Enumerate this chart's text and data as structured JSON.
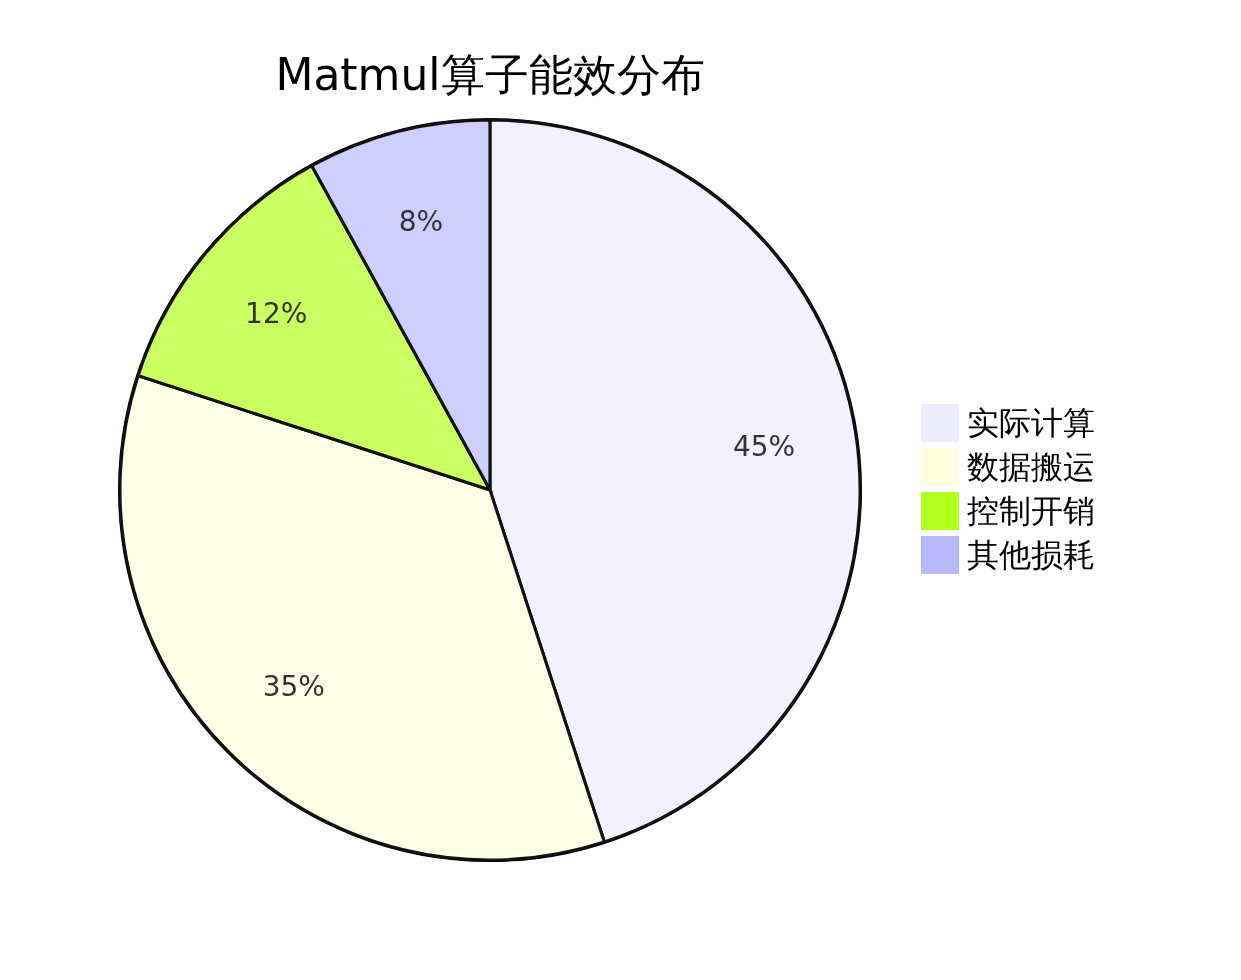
{
  "chart_data": {
    "type": "pie",
    "title": "Matmul算子能效分布",
    "categories": [
      "实际计算",
      "数据搬运",
      "控制开销",
      "其他损耗"
    ],
    "values": [
      45,
      35,
      12,
      8
    ],
    "colors": [
      "#ececff",
      "#ffffde",
      "#b3ff1f",
      "#b9b9ff"
    ],
    "value_labels": [
      "45%",
      "35%",
      "12%",
      "8%"
    ],
    "legend": "right"
  }
}
